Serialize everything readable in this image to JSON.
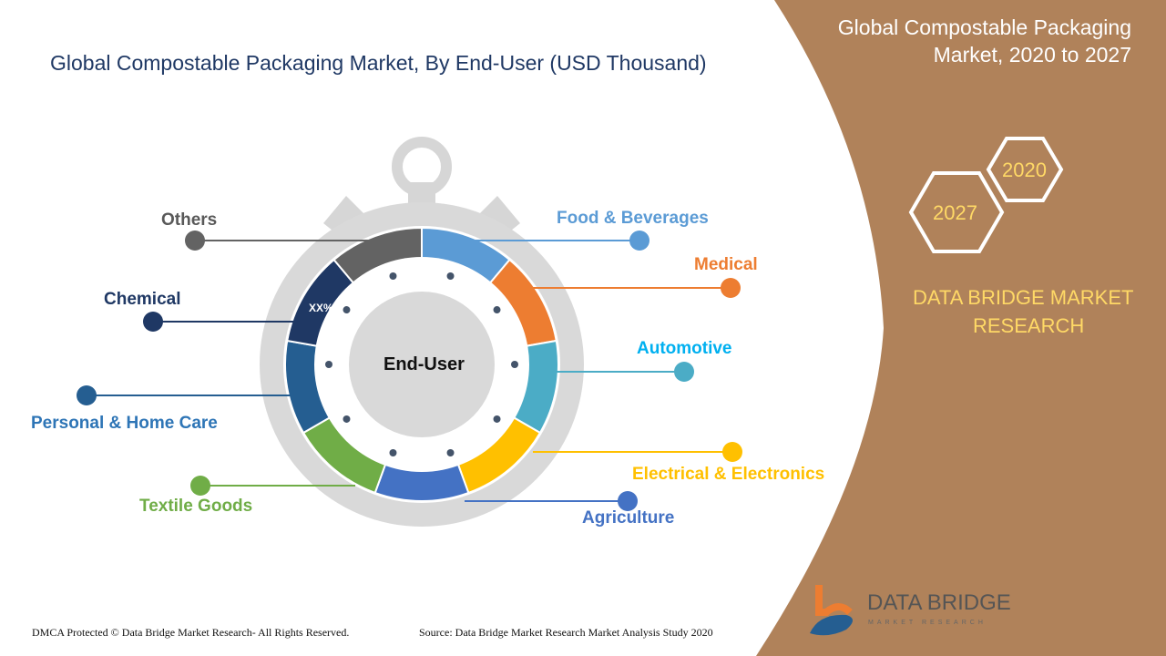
{
  "title": "Global Compostable Packaging Market, By End-User (USD Thousand)",
  "side": {
    "title_line1": "Global Compostable Packaging",
    "title_line2": "Market, 2020 to 2027",
    "hex_a": "2020",
    "hex_b": "2027",
    "brand_line1": "DATA BRIDGE MARKET",
    "brand_line2": "RESEARCH"
  },
  "center_label": "End-User",
  "segment_label": "XX%",
  "segments": [
    {
      "label": "Food & Beverages",
      "color": "#5B9BD5"
    },
    {
      "label": "Medical",
      "color": "#ED7D31"
    },
    {
      "label": "Automotive",
      "color": "#4BACC6"
    },
    {
      "label": "Electrical & Electronics",
      "color": "#FFC000"
    },
    {
      "label": "Agriculture",
      "color": "#4472C4"
    },
    {
      "label": "Textile Goods",
      "color": "#70AD47"
    },
    {
      "label": "Personal & Home Care",
      "color": "#255E91"
    },
    {
      "label": "Chemical",
      "color": "#1F3864"
    },
    {
      "label": "Others",
      "color": "#636363"
    }
  ],
  "logo": {
    "name": "DATA BRIDGE",
    "sub": "MARKET RESEARCH"
  },
  "footer": {
    "left": "DMCA Protected © Data Bridge Market Research- All Rights Reserved.",
    "right": "Source: Data Bridge Market Research Market Analysis Study 2020"
  }
}
